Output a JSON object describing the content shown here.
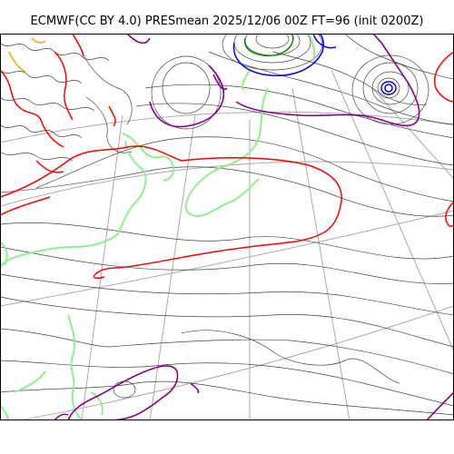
{
  "title": "ECMWF(CC BY 4.0) PRESmean 2025/12/06 00Z FT=96 (init 0200Z)",
  "colors": {
    "background": "#ffffff",
    "frame": "#000000",
    "graticule": "#aaaaaa",
    "isobar": "#444444",
    "contour_red": "#ff0000",
    "contour_purple": "#880088",
    "contour_green": "#90ee90",
    "contour_blue": "#0000ff",
    "contour_darkgreen": "#008800",
    "contour_orange": "#ffa500"
  },
  "features": {
    "low_pressure_centers": 2,
    "contour_color_names": [
      "red",
      "purple",
      "light-green",
      "blue",
      "dark-green",
      "orange",
      "gray"
    ]
  }
}
